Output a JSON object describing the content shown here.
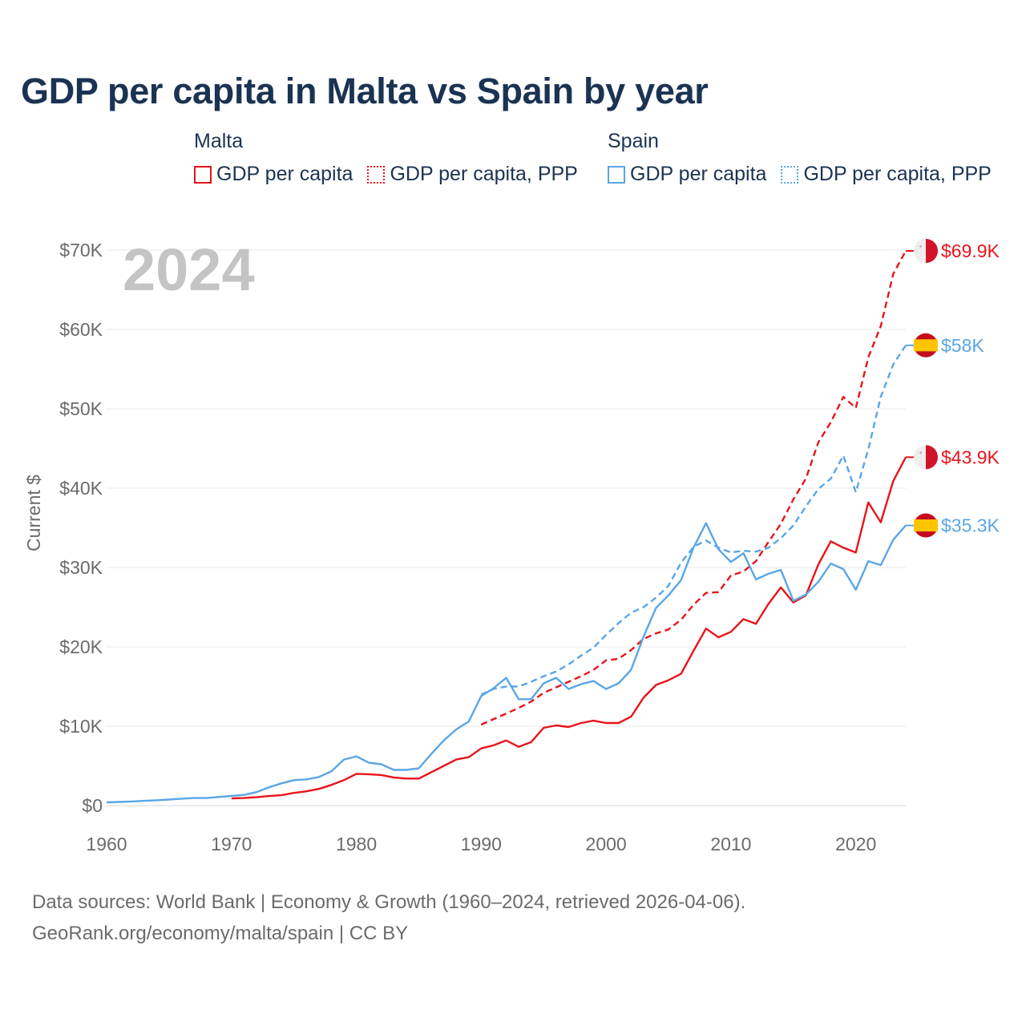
{
  "title": "GDP per capita in Malta vs Spain by year",
  "legend": [
    {
      "country": "Malta",
      "color": "#e8141b",
      "items": [
        "GDP per capita",
        "GDP per capita, PPP"
      ]
    },
    {
      "country": "Spain",
      "color": "#5aa6e6",
      "items": [
        "GDP per capita",
        "GDP per capita, PPP"
      ]
    }
  ],
  "footer": {
    "line1": "Data sources: World Bank | Economy & Growth (1960–2024, retrieved 2026-04-06).",
    "line2": "GeoRank.org/economy/malta/spain | CC BY"
  },
  "chart_data": {
    "type": "line",
    "title": "GDP per capita in Malta vs Spain by year",
    "xlabel": "",
    "ylabel": "Current $",
    "year_label": "2024",
    "xlim": [
      1960,
      2024
    ],
    "ylim": [
      0,
      70000
    ],
    "x_ticks": [
      1960,
      1970,
      1980,
      1990,
      2000,
      2010,
      2020
    ],
    "y_ticks": [
      0,
      10000,
      20000,
      30000,
      40000,
      50000,
      60000,
      70000
    ],
    "y_tick_labels": [
      "$0",
      "$10K",
      "$20K",
      "$30K",
      "$40K",
      "$50K",
      "$60K",
      "$70K"
    ],
    "series": [
      {
        "name": "Malta GDP per capita PPP",
        "country": "Malta",
        "color": "#e8141b",
        "dashed": true,
        "end_label": "$69.9K",
        "points": [
          [
            1990,
            10200
          ],
          [
            1991,
            10900
          ],
          [
            1992,
            11600
          ],
          [
            1993,
            12300
          ],
          [
            1994,
            13100
          ],
          [
            1995,
            14200
          ],
          [
            1996,
            14900
          ],
          [
            1997,
            15600
          ],
          [
            1998,
            16300
          ],
          [
            1999,
            17100
          ],
          [
            2000,
            18300
          ],
          [
            2001,
            18500
          ],
          [
            2002,
            19600
          ],
          [
            2003,
            21000
          ],
          [
            2004,
            21700
          ],
          [
            2005,
            22200
          ],
          [
            2006,
            23400
          ],
          [
            2007,
            25300
          ],
          [
            2008,
            26800
          ],
          [
            2009,
            26900
          ],
          [
            2010,
            29000
          ],
          [
            2011,
            29500
          ],
          [
            2012,
            30800
          ],
          [
            2013,
            33200
          ],
          [
            2014,
            35500
          ],
          [
            2015,
            38600
          ],
          [
            2016,
            41200
          ],
          [
            2017,
            45800
          ],
          [
            2018,
            48300
          ],
          [
            2019,
            51500
          ],
          [
            2020,
            50100
          ],
          [
            2021,
            56500
          ],
          [
            2022,
            60400
          ],
          [
            2023,
            67000
          ],
          [
            2024,
            69900
          ]
        ]
      },
      {
        "name": "Spain GDP per capita PPP",
        "country": "Spain",
        "color": "#5aa6e6",
        "dashed": true,
        "end_label": "$58K",
        "points": [
          [
            1990,
            14000
          ],
          [
            1991,
            14700
          ],
          [
            1992,
            15000
          ],
          [
            1993,
            15000
          ],
          [
            1994,
            15600
          ],
          [
            1995,
            16300
          ],
          [
            1996,
            16900
          ],
          [
            1997,
            17800
          ],
          [
            1998,
            18900
          ],
          [
            1999,
            19900
          ],
          [
            2000,
            21500
          ],
          [
            2001,
            23000
          ],
          [
            2002,
            24300
          ],
          [
            2003,
            25000
          ],
          [
            2004,
            26200
          ],
          [
            2005,
            27700
          ],
          [
            2006,
            30600
          ],
          [
            2007,
            32600
          ],
          [
            2008,
            33400
          ],
          [
            2009,
            32500
          ],
          [
            2010,
            31900
          ],
          [
            2011,
            32100
          ],
          [
            2012,
            32000
          ],
          [
            2013,
            32500
          ],
          [
            2014,
            33700
          ],
          [
            2015,
            35300
          ],
          [
            2016,
            37700
          ],
          [
            2017,
            39900
          ],
          [
            2018,
            41200
          ],
          [
            2019,
            44100
          ],
          [
            2020,
            39500
          ],
          [
            2021,
            44900
          ],
          [
            2022,
            51500
          ],
          [
            2023,
            55600
          ],
          [
            2024,
            58000
          ]
        ]
      },
      {
        "name": "Malta GDP per capita",
        "country": "Malta",
        "color": "#e8141b",
        "dashed": false,
        "end_label": "$43.9K",
        "points": [
          [
            1970,
            900
          ],
          [
            1971,
            950
          ],
          [
            1972,
            1050
          ],
          [
            1973,
            1200
          ],
          [
            1974,
            1300
          ],
          [
            1975,
            1600
          ],
          [
            1976,
            1800
          ],
          [
            1977,
            2100
          ],
          [
            1978,
            2600
          ],
          [
            1979,
            3200
          ],
          [
            1980,
            4000
          ],
          [
            1981,
            3950
          ],
          [
            1982,
            3850
          ],
          [
            1983,
            3550
          ],
          [
            1984,
            3400
          ],
          [
            1985,
            3400
          ],
          [
            1986,
            4200
          ],
          [
            1987,
            5000
          ],
          [
            1988,
            5800
          ],
          [
            1989,
            6100
          ],
          [
            1990,
            7200
          ],
          [
            1991,
            7600
          ],
          [
            1992,
            8200
          ],
          [
            1993,
            7400
          ],
          [
            1994,
            8000
          ],
          [
            1995,
            9800
          ],
          [
            1996,
            10100
          ],
          [
            1997,
            9900
          ],
          [
            1998,
            10400
          ],
          [
            1999,
            10700
          ],
          [
            2000,
            10400
          ],
          [
            2001,
            10400
          ],
          [
            2002,
            11200
          ],
          [
            2003,
            13600
          ],
          [
            2004,
            15200
          ],
          [
            2005,
            15800
          ],
          [
            2006,
            16600
          ],
          [
            2007,
            19500
          ],
          [
            2008,
            22300
          ],
          [
            2009,
            21200
          ],
          [
            2010,
            21900
          ],
          [
            2011,
            23500
          ],
          [
            2012,
            22900
          ],
          [
            2013,
            25400
          ],
          [
            2014,
            27500
          ],
          [
            2015,
            25600
          ],
          [
            2016,
            26500
          ],
          [
            2017,
            30400
          ],
          [
            2018,
            33300
          ],
          [
            2019,
            32500
          ],
          [
            2020,
            31900
          ],
          [
            2021,
            38200
          ],
          [
            2022,
            35700
          ],
          [
            2023,
            40900
          ],
          [
            2024,
            43900
          ]
        ]
      },
      {
        "name": "Spain GDP per capita",
        "country": "Spain",
        "color": "#5aa6e6",
        "dashed": false,
        "end_label": "$35.3K",
        "points": [
          [
            1960,
            400
          ],
          [
            1961,
            450
          ],
          [
            1962,
            520
          ],
          [
            1963,
            600
          ],
          [
            1964,
            670
          ],
          [
            1965,
            760
          ],
          [
            1966,
            870
          ],
          [
            1967,
            950
          ],
          [
            1968,
            950
          ],
          [
            1969,
            1080
          ],
          [
            1970,
            1210
          ],
          [
            1971,
            1340
          ],
          [
            1972,
            1700
          ],
          [
            1973,
            2300
          ],
          [
            1974,
            2800
          ],
          [
            1975,
            3200
          ],
          [
            1976,
            3300
          ],
          [
            1977,
            3600
          ],
          [
            1978,
            4300
          ],
          [
            1979,
            5800
          ],
          [
            1980,
            6200
          ],
          [
            1981,
            5400
          ],
          [
            1982,
            5200
          ],
          [
            1983,
            4500
          ],
          [
            1984,
            4500
          ],
          [
            1985,
            4700
          ],
          [
            1986,
            6500
          ],
          [
            1987,
            8200
          ],
          [
            1988,
            9600
          ],
          [
            1989,
            10600
          ],
          [
            1990,
            13800
          ],
          [
            1991,
            14800
          ],
          [
            1992,
            16100
          ],
          [
            1993,
            13400
          ],
          [
            1994,
            13400
          ],
          [
            1995,
            15400
          ],
          [
            1996,
            16100
          ],
          [
            1997,
            14700
          ],
          [
            1998,
            15300
          ],
          [
            1999,
            15700
          ],
          [
            2000,
            14700
          ],
          [
            2001,
            15400
          ],
          [
            2002,
            17100
          ],
          [
            2003,
            21300
          ],
          [
            2004,
            24900
          ],
          [
            2005,
            26500
          ],
          [
            2006,
            28400
          ],
          [
            2007,
            32500
          ],
          [
            2008,
            35600
          ],
          [
            2009,
            32300
          ],
          [
            2010,
            30700
          ],
          [
            2011,
            31800
          ],
          [
            2012,
            28500
          ],
          [
            2013,
            29200
          ],
          [
            2014,
            29700
          ],
          [
            2015,
            25800
          ],
          [
            2016,
            26600
          ],
          [
            2017,
            28200
          ],
          [
            2018,
            30500
          ],
          [
            2019,
            29800
          ],
          [
            2020,
            27200
          ],
          [
            2021,
            30800
          ],
          [
            2022,
            30300
          ],
          [
            2023,
            33500
          ],
          [
            2024,
            35300
          ]
        ]
      }
    ]
  }
}
